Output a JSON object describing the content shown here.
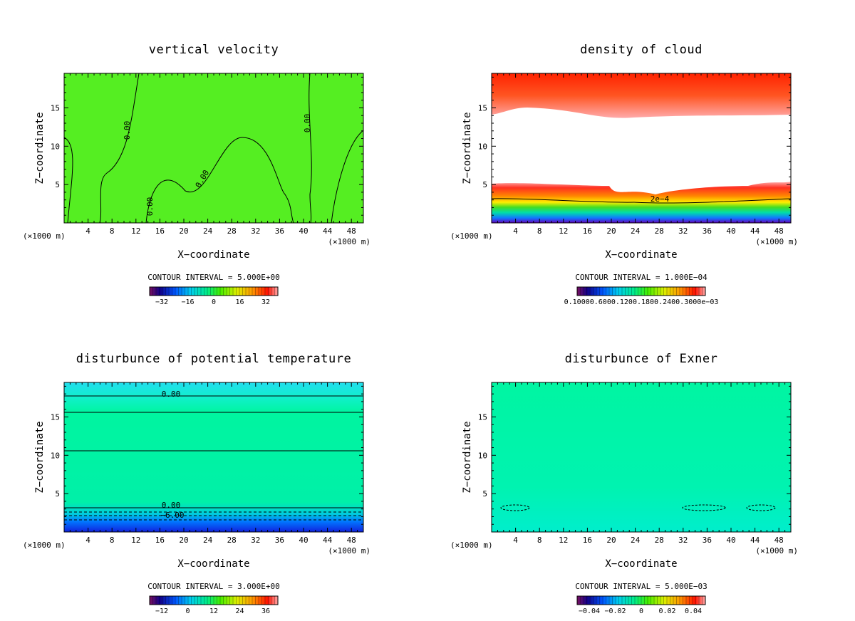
{
  "chart_data": [
    {
      "type": "heatmap",
      "title": "vertical velocity",
      "xlabel": "X−coordinate",
      "ylabel": "Z−coordinate",
      "x_unit_left": "(×1000 m)",
      "x_unit_right": "(×1000 m)",
      "x_ticks": [
        4,
        8,
        12,
        16,
        20,
        24,
        28,
        32,
        36,
        40,
        44,
        48
      ],
      "y_ticks": [
        5,
        10,
        15
      ],
      "xlim": [
        0,
        50
      ],
      "ylim": [
        0,
        19.5
      ],
      "contour_interval_text": "CONTOUR INTERVAL = 5.000E+00",
      "colorbar_labels": [
        "−32",
        "−16",
        "0",
        "16",
        "32"
      ],
      "contour_labels": [
        "0.00",
        "0.00",
        "0.00",
        "0.00"
      ],
      "fill_color": "#55ee22"
    },
    {
      "type": "heatmap",
      "title": "density of cloud",
      "xlabel": "X−coordinate",
      "ylabel": "Z−coordinate",
      "x_unit_left": "(×1000 m)",
      "x_unit_right": "(×1000 m)",
      "x_ticks": [
        4,
        8,
        12,
        16,
        20,
        24,
        28,
        32,
        36,
        40,
        44,
        48
      ],
      "y_ticks": [
        5,
        10,
        15
      ],
      "xlim": [
        0,
        50
      ],
      "ylim": [
        0,
        19.5
      ],
      "contour_interval_text": "CONTOUR INTERVAL = 1.000E−04",
      "colorbar_labels": [
        "0.10000.6000.1200.1800.2400.3000e−03"
      ],
      "contour_labels": [
        "2e−4"
      ]
    },
    {
      "type": "heatmap",
      "title": "disturbunce of potential temperature",
      "xlabel": "X−coordinate",
      "ylabel": "Z−coordinate",
      "x_unit_left": "(×1000 m)",
      "x_unit_right": "(×1000 m)",
      "x_ticks": [
        4,
        8,
        12,
        16,
        20,
        24,
        28,
        32,
        36,
        40,
        44,
        48
      ],
      "y_ticks": [
        5,
        10,
        15
      ],
      "xlim": [
        0,
        50
      ],
      "ylim": [
        0,
        19.5
      ],
      "contour_interval_text": "CONTOUR INTERVAL = 3.000E+00",
      "colorbar_labels": [
        "−12",
        "0",
        "12",
        "24",
        "36"
      ],
      "contour_labels": [
        "0.00",
        "0.00",
        "−6.00"
      ]
    },
    {
      "type": "heatmap",
      "title": "disturbunce of Exner",
      "xlabel": "X−coordinate",
      "ylabel": "Z−coordinate",
      "x_unit_left": "(×1000 m)",
      "x_unit_right": "(×1000 m)",
      "x_ticks": [
        4,
        8,
        12,
        16,
        20,
        24,
        28,
        32,
        36,
        40,
        44,
        48
      ],
      "y_ticks": [
        5,
        10,
        15
      ],
      "xlim": [
        0,
        50
      ],
      "ylim": [
        0,
        19.5
      ],
      "contour_interval_text": "CONTOUR INTERVAL = 5.000E−03",
      "colorbar_labels": [
        "−0.04",
        "−0.02",
        "0",
        "0.02",
        "0.04"
      ],
      "contour_labels": []
    }
  ]
}
